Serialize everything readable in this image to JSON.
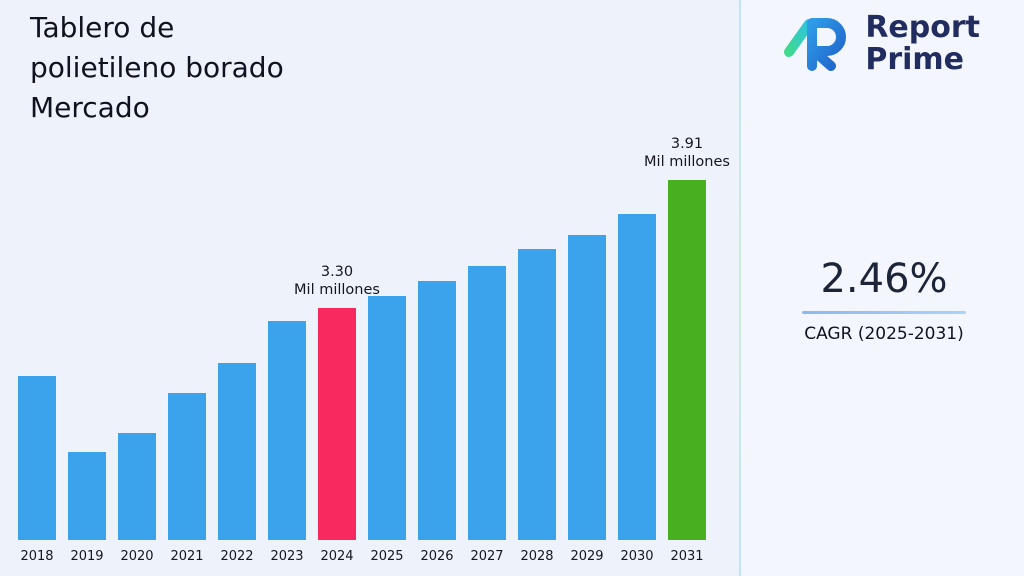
{
  "header": {
    "title": "Tablero de\npolietileno borado\nMercado"
  },
  "logo": {
    "line1": "Report",
    "line2": "Prime"
  },
  "stats": {
    "cagr_value": "2.46%",
    "cagr_label": "CAGR (2025-2031)"
  },
  "chart_data": {
    "type": "bar",
    "title": "Tablero de polietileno borado Mercado",
    "unit": "Mil millones",
    "categories": [
      "2018",
      "2019",
      "2020",
      "2021",
      "2022",
      "2023",
      "2024",
      "2025",
      "2026",
      "2027",
      "2028",
      "2029",
      "2030",
      "2031"
    ],
    "values": [
      2.98,
      2.62,
      2.71,
      2.9,
      3.04,
      3.24,
      3.3,
      3.36,
      3.43,
      3.5,
      3.58,
      3.65,
      3.75,
      3.91
    ],
    "labeled_values": {
      "2024": 3.3,
      "2031": 3.91
    },
    "bar_colors": [
      "#3ba3ec",
      "#3ba3ec",
      "#3ba3ec",
      "#3ba3ec",
      "#3ba3ec",
      "#3ba3ec",
      "#f7295f",
      "#3ba3ec",
      "#3ba3ec",
      "#3ba3ec",
      "#3ba3ec",
      "#3ba3ec",
      "#3ba3ec",
      "#47b020"
    ],
    "annotations": [
      {
        "index": 6,
        "value_label": "3.30",
        "unit_label": "Mil millones"
      },
      {
        "index": 13,
        "value_label": "3.91",
        "unit_label": "Mil millones"
      }
    ],
    "ylim": [
      2.2,
      3.91
    ],
    "grid": false,
    "legend": false,
    "axes_hidden": true
  },
  "colors": {
    "background": "#eef2fb",
    "bar_default": "#3ba3ec",
    "bar_highlight_2024": "#f7295f",
    "bar_highlight_2031": "#47b020",
    "title_text": "#10131f",
    "brand_navy": "#212c5f",
    "accent_teal": "#3fd98f",
    "accent_blue": "#2a7fdb"
  }
}
